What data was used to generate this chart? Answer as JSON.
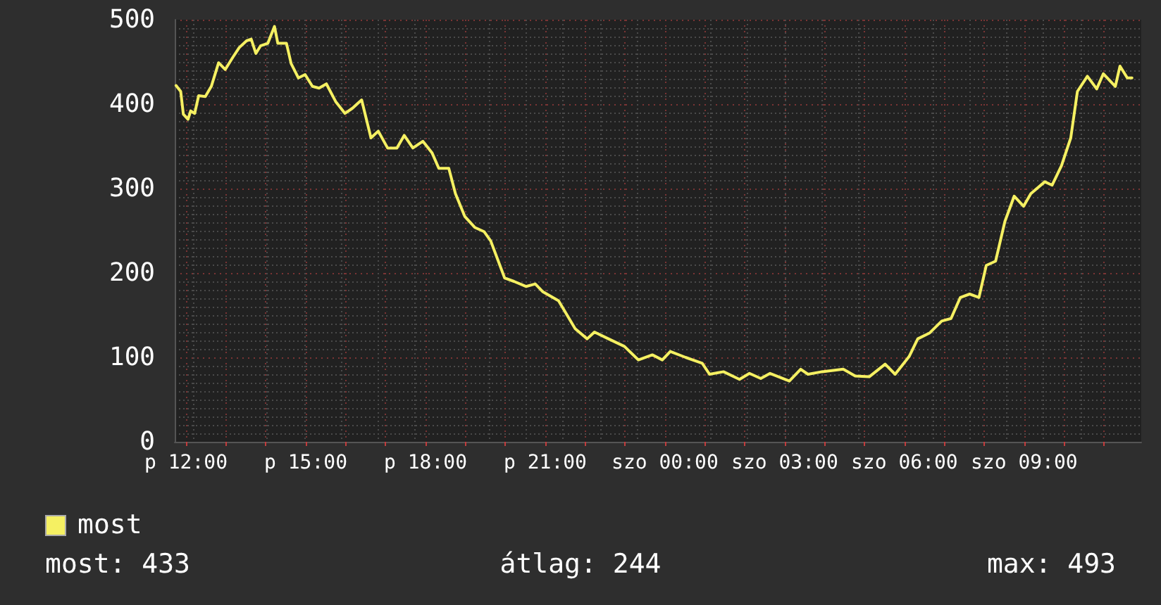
{
  "chart_data": {
    "type": "line",
    "x": [
      "--01-05T11:45",
      "--01-05T11:52",
      "--01-05T11:56",
      "--01-05T12:03",
      "--01-05T12:07",
      "--01-05T12:13",
      "--01-05T12:19",
      "--01-05T12:29",
      "--01-05T12:38",
      "--01-05T12:49",
      "--01-05T12:59",
      "--01-05T13:10",
      "--01-05T13:20",
      "--01-05T13:31",
      "--01-05T13:38",
      "--01-05T13:45",
      "--01-05T13:52",
      "--01-05T14:03",
      "--01-05T14:13",
      "--01-05T14:18",
      "--01-05T14:31",
      "--01-05T14:38",
      "--01-05T14:49",
      "--01-05T14:59",
      "--01-05T15:10",
      "--01-05T15:20",
      "--01-05T15:31",
      "--01-05T15:45",
      "--01-05T15:59",
      "--01-05T16:10",
      "--01-05T16:24",
      "--01-05T16:38",
      "--01-05T16:49",
      "--01-05T17:03",
      "--01-05T17:17",
      "--01-05T17:28",
      "--01-05T17:41",
      "--01-05T17:56",
      "--01-05T18:10",
      "--01-05T18:20",
      "--01-05T18:35",
      "--01-05T18:45",
      "--01-05T18:59",
      "--01-05T19:14",
      "--01-05T19:28",
      "--01-05T19:38",
      "--01-05T19:59",
      "--01-05T20:13",
      "--01-05T20:31",
      "--01-05T20:45",
      "--01-05T20:56",
      "--01-05T21:20",
      "--01-05T21:45",
      "--01-05T22:03",
      "--01-05T22:14",
      "--01-05T22:35",
      "--01-05T22:59",
      "--01-05T23:20",
      "--01-05T23:41",
      "--01-05T23:56",
      "--01-06T00:08",
      "--01-06T00:31",
      "--01-06T00:56",
      "--01-06T01:07",
      "--01-06T01:28",
      "--01-06T01:52",
      "--01-06T02:07",
      "--01-06T02:24",
      "--01-06T02:38",
      "--01-06T03:07",
      "--01-06T03:24",
      "--01-06T03:35",
      "--01-06T03:56",
      "--01-06T04:28",
      "--01-06T04:46",
      "--01-06T05:07",
      "--01-06T05:31",
      "--01-06T05:46",
      "--01-06T06:07",
      "--01-06T06:20",
      "--01-06T06:38",
      "--01-06T06:56",
      "--01-06T07:10",
      "--01-06T07:24",
      "--01-06T07:38",
      "--01-06T07:52",
      "--01-06T08:03",
      "--01-06T08:17",
      "--01-06T08:31",
      "--01-06T08:45",
      "--01-06T08:59",
      "--01-06T09:10",
      "--01-06T09:31",
      "--01-06T09:42",
      "--01-06T09:56",
      "--01-06T10:10",
      "--01-06T10:20",
      "--01-06T10:35",
      "--01-06T10:49",
      "--01-06T10:59",
      "--01-06T11:17",
      "--01-06T11:24",
      "--01-06T11:35",
      "--01-06T11:42"
    ],
    "series": [
      {
        "name": "most",
        "color": "#f5f062",
        "values": [
          422,
          415,
          388,
          382,
          392,
          389,
          410,
          409,
          421,
          449,
          441,
          455,
          467,
          475,
          477,
          460,
          469,
          472,
          492,
          472,
          472,
          448,
          431,
          435,
          421,
          419,
          424,
          403,
          389,
          395,
          405,
          360,
          368,
          348,
          348,
          363,
          348,
          356,
          342,
          324,
          324,
          294,
          267,
          254,
          249,
          238,
          194,
          190,
          184,
          187,
          178,
          167,
          134,
          122,
          130,
          122,
          113,
          97,
          103,
          97,
          107,
          100,
          93,
          80,
          83,
          74,
          81,
          75,
          81,
          72,
          86,
          80,
          83,
          86,
          78,
          77,
          92,
          80,
          101,
          122,
          129,
          143,
          146,
          171,
          175,
          171,
          209,
          214,
          261,
          291,
          279,
          294,
          308,
          304,
          327,
          360,
          415,
          433,
          418,
          436,
          421,
          445,
          431,
          431
        ]
      }
    ],
    "xlim": [
      "--01-05T11:43",
      "--01-06T11:56"
    ],
    "xticks": [
      {
        "value": "--01-05T12:00",
        "label": "p 12:00"
      },
      {
        "value": "--01-05T13:00",
        "label": null
      },
      {
        "value": "--01-05T14:00",
        "label": null
      },
      {
        "value": "--01-05T15:00",
        "label": "p 15:00"
      },
      {
        "value": "--01-05T16:00",
        "label": null
      },
      {
        "value": "--01-05T17:00",
        "label": null
      },
      {
        "value": "--01-05T18:00",
        "label": "p 18:00"
      },
      {
        "value": "--01-05T19:00",
        "label": null
      },
      {
        "value": "--01-05T20:00",
        "label": null
      },
      {
        "value": "--01-05T21:00",
        "label": "p 21:00"
      },
      {
        "value": "--01-05T22:00",
        "label": null
      },
      {
        "value": "--01-05T23:00",
        "label": null
      },
      {
        "value": "--01-06T00:00",
        "label": "szo 00:00"
      },
      {
        "value": "--01-06T01:00",
        "label": null
      },
      {
        "value": "--01-06T02:00",
        "label": null
      },
      {
        "value": "--01-06T03:00",
        "label": "szo 03:00"
      },
      {
        "value": "--01-06T04:00",
        "label": null
      },
      {
        "value": "--01-06T05:00",
        "label": null
      },
      {
        "value": "--01-06T06:00",
        "label": "szo 06:00"
      },
      {
        "value": "--01-06T07:00",
        "label": null
      },
      {
        "value": "--01-06T08:00",
        "label": null
      },
      {
        "value": "--01-06T09:00",
        "label": "szo 09:00"
      },
      {
        "value": "--01-06T10:00",
        "label": null
      },
      {
        "value": "--01-06T11:00",
        "label": null
      }
    ],
    "ylim": [
      0,
      500
    ],
    "yticks": [
      0,
      100,
      200,
      300,
      400,
      500
    ],
    "grid": true,
    "legend": "bottom left",
    "marker": "none",
    "line_style": "solid",
    "annotations": [
      "most: 433",
      "átlag: 244",
      "max: 493"
    ]
  }
}
